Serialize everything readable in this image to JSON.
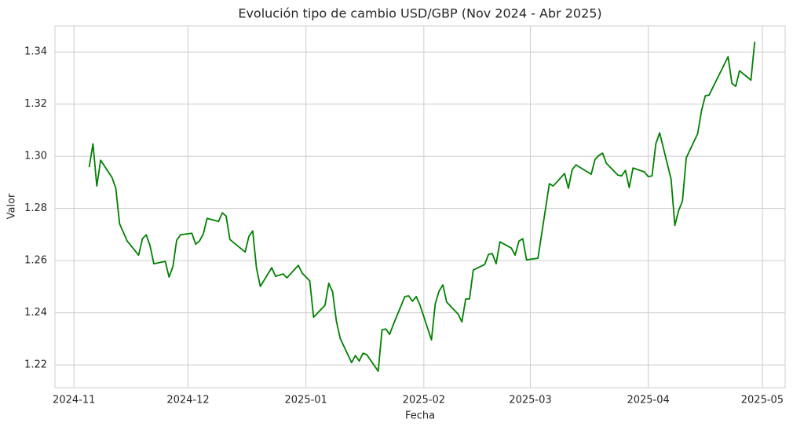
{
  "chart_data": {
    "type": "line",
    "title": "Evolución tipo de cambio USD/GBP (Nov 2024 - Abr 2025)",
    "x_label": "Fecha",
    "y_label": "Valor",
    "color": "#008000",
    "grid": true,
    "x": [
      "2024-11-05",
      "2024-11-06",
      "2024-11-07",
      "2024-11-08",
      "2024-11-11",
      "2024-11-12",
      "2024-11-13",
      "2024-11-15",
      "2024-11-18",
      "2024-11-19",
      "2024-11-20",
      "2024-11-21",
      "2024-11-22",
      "2024-11-25",
      "2024-11-26",
      "2024-11-27",
      "2024-11-28",
      "2024-11-29",
      "2024-12-02",
      "2024-12-03",
      "2024-12-04",
      "2024-12-05",
      "2024-12-06",
      "2024-12-09",
      "2024-12-10",
      "2024-12-11",
      "2024-12-12",
      "2024-12-16",
      "2024-12-17",
      "2024-12-18",
      "2024-12-19",
      "2024-12-20",
      "2024-12-23",
      "2024-12-24",
      "2024-12-26",
      "2024-12-27",
      "2024-12-30",
      "2024-12-31",
      "2025-01-02",
      "2025-01-03",
      "2025-01-06",
      "2025-01-07",
      "2025-01-08",
      "2025-01-09",
      "2025-01-10",
      "2025-01-13",
      "2025-01-14",
      "2025-01-15",
      "2025-01-16",
      "2025-01-17",
      "2025-01-20",
      "2025-01-21",
      "2025-01-22",
      "2025-01-23",
      "2025-01-24",
      "2025-01-27",
      "2025-01-28",
      "2025-01-29",
      "2025-01-30",
      "2025-01-31",
      "2025-02-03",
      "2025-02-04",
      "2025-02-05",
      "2025-02-06",
      "2025-02-07",
      "2025-02-10",
      "2025-02-11",
      "2025-02-12",
      "2025-02-13",
      "2025-02-14",
      "2025-02-17",
      "2025-02-18",
      "2025-02-19",
      "2025-02-20",
      "2025-02-21",
      "2025-02-24",
      "2025-02-25",
      "2025-02-26",
      "2025-02-27",
      "2025-02-28",
      "2025-03-03",
      "2025-03-06",
      "2025-03-07",
      "2025-03-10",
      "2025-03-11",
      "2025-03-12",
      "2025-03-13",
      "2025-03-14",
      "2025-03-17",
      "2025-03-18",
      "2025-03-19",
      "2025-03-20",
      "2025-03-21",
      "2025-03-24",
      "2025-03-25",
      "2025-03-26",
      "2025-03-27",
      "2025-03-28",
      "2025-03-31",
      "2025-04-01",
      "2025-04-02",
      "2025-04-03",
      "2025-04-04",
      "2025-04-07",
      "2025-04-08",
      "2025-04-09",
      "2025-04-10",
      "2025-04-11",
      "2025-04-14",
      "2025-04-15",
      "2025-04-16",
      "2025-04-17",
      "2025-04-22",
      "2025-04-23",
      "2025-04-24",
      "2025-04-25",
      "2025-04-28",
      "2025-04-29"
    ],
    "values": [
      1.2958,
      1.3048,
      1.2886,
      1.2985,
      1.2919,
      1.2877,
      1.2741,
      1.2675,
      1.2621,
      1.2684,
      1.2699,
      1.2657,
      1.2588,
      1.2597,
      1.2537,
      1.2576,
      1.2678,
      1.2699,
      1.2705,
      1.2663,
      1.2675,
      1.2702,
      1.2762,
      1.275,
      1.2783,
      1.2771,
      1.2681,
      1.2633,
      1.2693,
      1.2714,
      1.257,
      1.2501,
      1.2573,
      1.254,
      1.2549,
      1.2534,
      1.2582,
      1.2552,
      1.2522,
      1.2383,
      1.2429,
      1.2513,
      1.248,
      1.2368,
      1.2302,
      1.2209,
      1.2236,
      1.2215,
      1.2245,
      1.2239,
      1.2176,
      1.2335,
      1.2338,
      1.2317,
      1.2356,
      1.2462,
      1.2465,
      1.2444,
      1.2462,
      1.2429,
      1.2296,
      1.2435,
      1.2483,
      1.2507,
      1.2441,
      1.2395,
      1.2365,
      1.2453,
      1.2453,
      1.2564,
      1.2585,
      1.2624,
      1.2627,
      1.2588,
      1.2672,
      1.2648,
      1.2621,
      1.2675,
      1.2684,
      1.2603,
      1.2609,
      1.2895,
      1.2886,
      1.2934,
      1.2877,
      1.2949,
      1.2967,
      1.2958,
      1.2931,
      1.2988,
      1.3003,
      1.3012,
      1.2973,
      1.2928,
      1.2925,
      1.2946,
      1.288,
      1.2955,
      1.294,
      1.2922,
      1.2925,
      1.3048,
      1.309,
      1.2913,
      1.2735,
      1.2792,
      1.2829,
      1.2994,
      1.3087,
      1.3174,
      1.3232,
      1.3235,
      1.3382,
      1.328,
      1.3268,
      1.3328,
      1.3292,
      1.3439
    ],
    "xlim": [
      "2024-10-27",
      "2025-05-07"
    ],
    "xticks": [
      {
        "value": "2024-11-01",
        "label": "2024-11"
      },
      {
        "value": "2024-12-01",
        "label": "2024-12"
      },
      {
        "value": "2025-01-01",
        "label": "2025-01"
      },
      {
        "value": "2025-02-01",
        "label": "2025-02"
      },
      {
        "value": "2025-03-01",
        "label": "2025-03"
      },
      {
        "value": "2025-04-01",
        "label": "2025-04"
      },
      {
        "value": "2025-05-01",
        "label": "2025-05"
      }
    ],
    "ylim": [
      1.2113,
      1.35
    ],
    "yticks": [
      1.22,
      1.24,
      1.26,
      1.28,
      {
        "value": 1.3,
        "label": "1.30"
      },
      1.32,
      1.34
    ]
  }
}
